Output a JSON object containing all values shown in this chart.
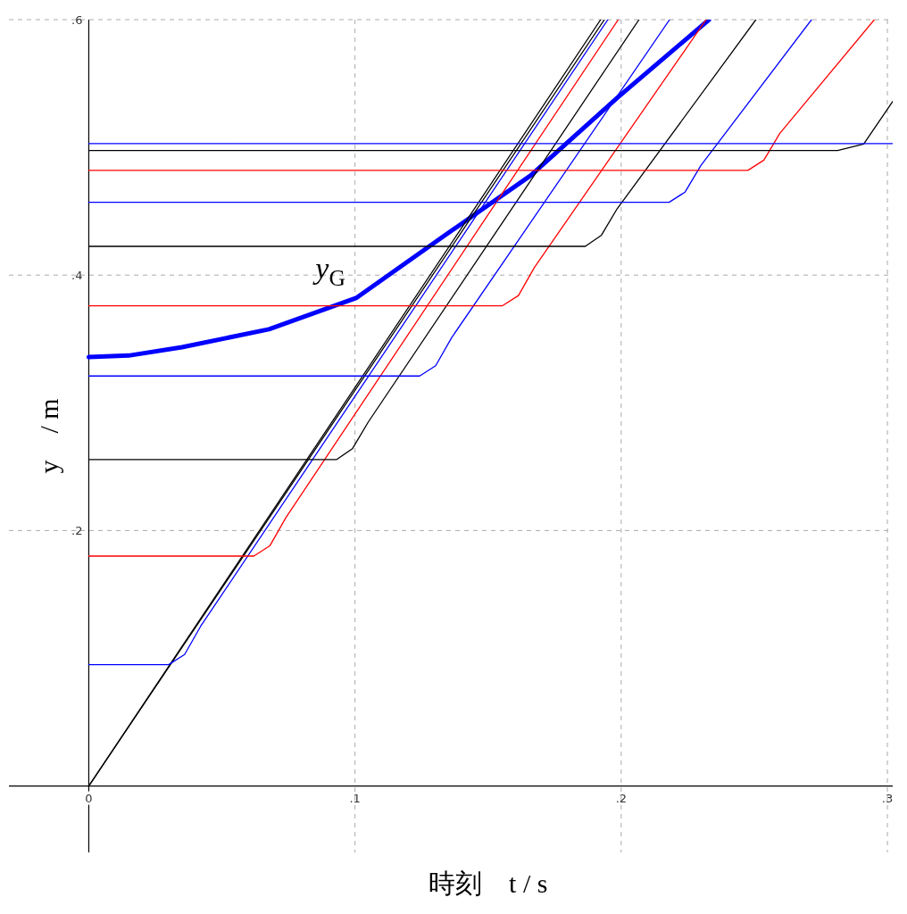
{
  "chart_data": {
    "type": "line",
    "xlabel": "時刻　t / s",
    "ylabel": "y　/ m",
    "xlim": [
      -0.03,
      0.302
    ],
    "ylim": [
      -0.052,
      0.6
    ],
    "xticks": [
      {
        "value": 0,
        "label": "0"
      },
      {
        "value": 0.1,
        "label": ".1"
      },
      {
        "value": 0.2,
        "label": ".2"
      },
      {
        "value": 0.3,
        "label": ".3"
      }
    ],
    "yticks": [
      {
        "value": 0.2,
        "label": ".2"
      },
      {
        "value": 0.4,
        "label": ".4"
      },
      {
        "value": 0.6,
        "label": ".6"
      }
    ],
    "grid": true,
    "series": [
      {
        "color": "#000000",
        "x": [
          0,
          0.1923
        ],
        "values": [
          0,
          0.6
        ]
      },
      {
        "color": "#000000",
        "x": [
          0,
          0.1937
        ],
        "values": [
          0,
          0.6
        ]
      },
      {
        "color": "#0000ff",
        "x": [
          0,
          0.03,
          0.036,
          0.042,
          0.195
        ],
        "values": [
          0.095,
          0.095,
          0.103,
          0.125,
          0.6
        ]
      },
      {
        "color": "#ff0000",
        "x": [
          0,
          0.062,
          0.068,
          0.074,
          0.1989
        ],
        "values": [
          0.18,
          0.18,
          0.188,
          0.21,
          0.6
        ]
      },
      {
        "color": "#000000",
        "x": [
          0,
          0.093,
          0.099,
          0.105,
          0.2067
        ],
        "values": [
          0.2555,
          0.2555,
          0.264,
          0.285,
          0.6
        ]
      },
      {
        "color": "#0000ff",
        "x": [
          0,
          0.1243,
          0.1303,
          0.1363,
          0.2182
        ],
        "values": [
          0.321,
          0.321,
          0.329,
          0.351,
          0.6
        ]
      },
      {
        "color": "#ff0000",
        "x": [
          0,
          0.1554,
          0.1614,
          0.1674,
          0.2319
        ],
        "values": [
          0.376,
          0.376,
          0.384,
          0.406,
          0.6
        ]
      },
      {
        "color": "#000000",
        "x": [
          0,
          0.1865,
          0.1925,
          0.1985,
          0.2506
        ],
        "values": [
          0.4225,
          0.4225,
          0.431,
          0.452,
          0.6
        ]
      },
      {
        "color": "#0000ff",
        "x": [
          0,
          0.218,
          0.224,
          0.23,
          0.2715
        ],
        "values": [
          0.457,
          0.457,
          0.465,
          0.486,
          0.6
        ]
      },
      {
        "color": "#ff0000",
        "x": [
          0,
          0.2476,
          0.2536,
          0.2596,
          0.2951
        ],
        "values": [
          0.482,
          0.482,
          0.49,
          0.511,
          0.6
        ]
      },
      {
        "color": "#000000",
        "x": [
          0,
          0.2813,
          0.2911,
          0.302
        ],
        "values": [
          0.4976,
          0.4976,
          0.5026,
          0.536
        ]
      },
      {
        "color": "#0000ff",
        "x": [
          0,
          0.302
        ],
        "values": [
          0.503,
          0.503
        ]
      },
      {
        "name": "y$_{G}$",
        "color": "#0000ff",
        "x": [
          0,
          0.015,
          0.035,
          0.0677,
          0.1004,
          0.133,
          0.166,
          0.1986,
          0.233
        ],
        "values": [
          0.3358,
          0.337,
          0.3435,
          0.3576,
          0.382,
          0.43,
          0.478,
          0.539,
          0.6
        ]
      }
    ]
  }
}
